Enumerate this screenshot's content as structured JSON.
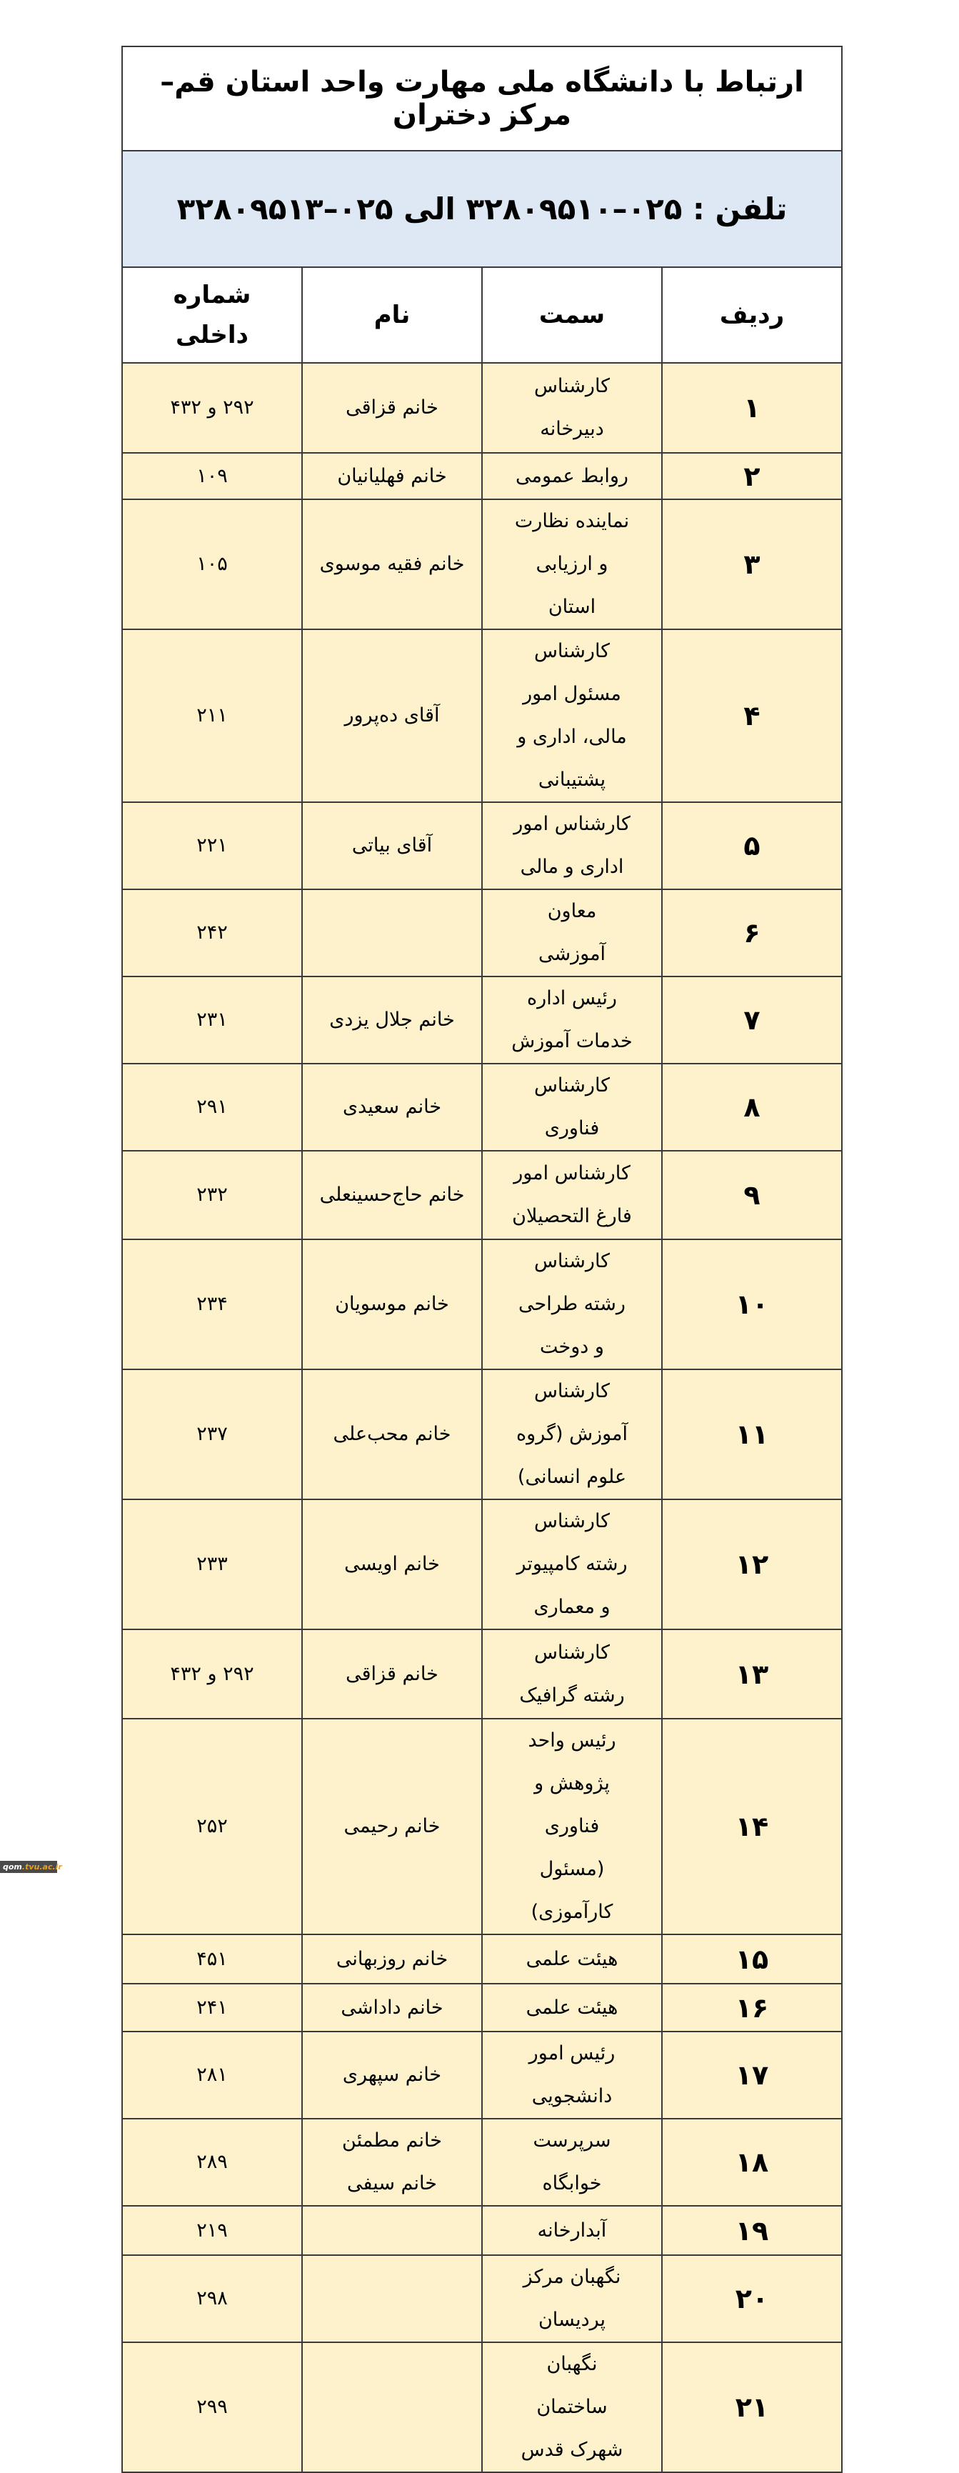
{
  "title": "ارتباط با دانشگاه ملی مهارت واحد استان قم– مرکز دختران",
  "phone": "تلفن : ۰۲۵–۳۲۸۰۹۵۱۰  الی  ۰۲۵–۳۲۸۰۹۵۱۳",
  "headers": {
    "row_no": "ردیف",
    "position": "سمت",
    "name": "نام",
    "extension": "شماره داخلی"
  },
  "rows": [
    {
      "no": "۱",
      "position": "کارشناس دبیرخانه",
      "name": "خانم قزاقی",
      "ext": "۲۹۲ و ۴۳۲"
    },
    {
      "no": "۲",
      "position": "روابط عمومی",
      "name": "خانم فهلیانیان",
      "ext": "۱۰۹"
    },
    {
      "no": "۳",
      "position": "نماینده نظارت و ارزیابی استان",
      "name": "خانم فقیه موسوی",
      "ext": "۱۰۵"
    },
    {
      "no": "۴",
      "position": "کارشناس مسئول امور مالی، اداری و پشتیبانی",
      "name": "آقای ده‌پرور",
      "ext": "۲۱۱"
    },
    {
      "no": "۵",
      "position": "کارشناس امور اداری و مالی",
      "name": "آقای بیاتی",
      "ext": "۲۲۱"
    },
    {
      "no": "۶",
      "position": "معاون آموزشی",
      "name": "",
      "ext": "۲۴۲"
    },
    {
      "no": "۷",
      "position": "رئیس اداره خدمات آموزش",
      "name": "خانم جلال یزدی",
      "ext": "۲۳۱"
    },
    {
      "no": "۸",
      "position": "کارشناس فناوری",
      "name": "خانم سعیدی",
      "ext": "۲۹۱"
    },
    {
      "no": "۹",
      "position": "کارشناس امور فارغ التحصیلان",
      "name": "خانم حاج‌حسینعلی",
      "ext": "۲۳۲"
    },
    {
      "no": "۱۰",
      "position": "کارشناس رشته طراحی و دوخت",
      "name": "خانم موسویان",
      "ext": "۲۳۴"
    },
    {
      "no": "۱۱",
      "position": "کارشناس آموزش (گروه علوم انسانی)",
      "name": "خانم محب‌علی",
      "ext": "۲۳۷"
    },
    {
      "no": "۱۲",
      "position": "کارشناس رشته کامپیوتر و معماری",
      "name": "خانم اویسی",
      "ext": "۲۳۳"
    },
    {
      "no": "۱۳",
      "position": "کارشناس رشته گرافیک",
      "name": "خانم قزاقی",
      "ext": "۲۹۲ و ۴۳۲"
    },
    {
      "no": "۱۴",
      "position": "رئیس واحد پژوهش و فناوری (مسئول کارآموزی)",
      "name": "خانم رحیمی",
      "ext": "۲۵۲"
    },
    {
      "no": "۱۵",
      "position": "هیئت علمی",
      "name": "خانم روزبهانی",
      "ext": "۴۵۱"
    },
    {
      "no": "۱۶",
      "position": "هیئت علمی",
      "name": "خانم داداشی",
      "ext": "۲۴۱"
    },
    {
      "no": "۱۷",
      "position": "رئیس امور دانشجویی",
      "name": "خانم سپهری",
      "ext": "۲۸۱"
    },
    {
      "no": "۱۸",
      "position": "سرپرست خوابگاه",
      "name": "خانم مطمئن خانم سیفی",
      "ext": "۲۸۹"
    },
    {
      "no": "۱۹",
      "position": "آبدارخانه",
      "name": "",
      "ext": "۲۱۹"
    },
    {
      "no": "۲۰",
      "position": "نگهبان مرکز پردیسان",
      "name": "",
      "ext": "۲۹۸"
    },
    {
      "no": "۲۱",
      "position": "نگهبان ساختمان شهرک قدس",
      "name": "",
      "ext": "۲۹۹"
    }
  ],
  "watermark": {
    "part1": "qom",
    "part2": ".tvu.ac.ir"
  },
  "colors": {
    "row_bg": "#fdf2cc",
    "phone_bg": "#dde8f4",
    "border": "#3a3a3a"
  }
}
